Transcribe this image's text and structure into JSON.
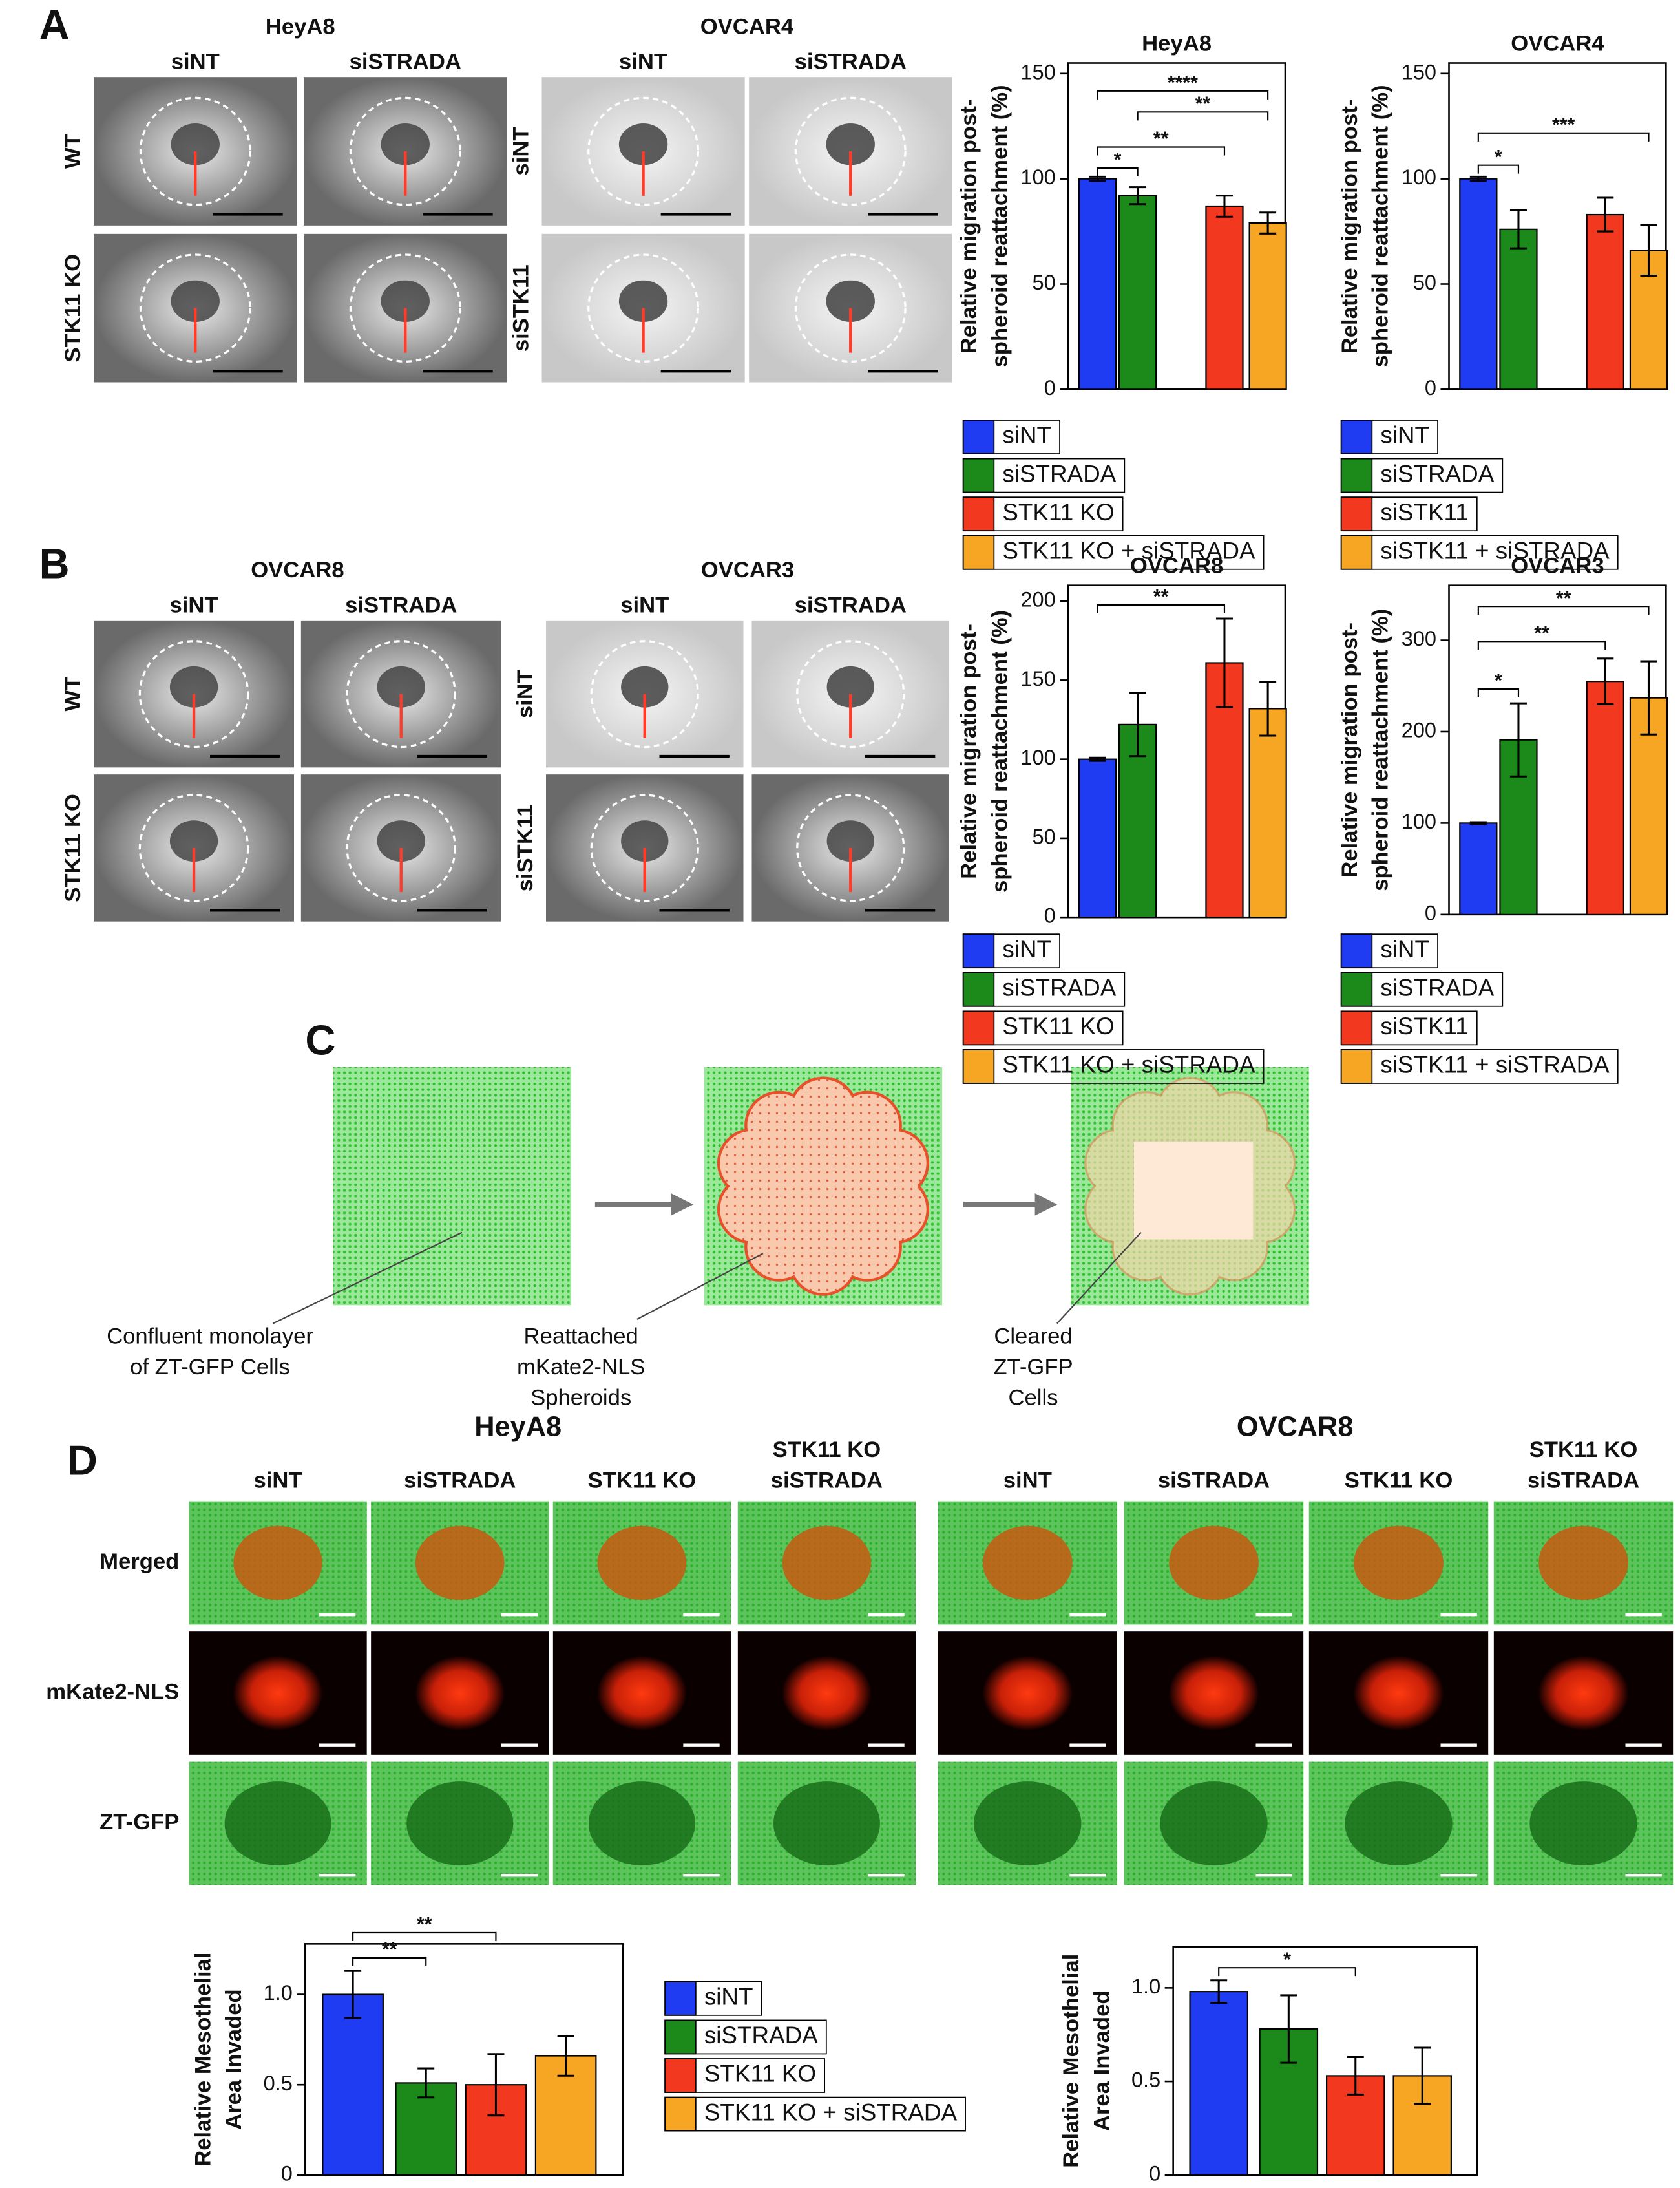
{
  "panel_a": {
    "label": "A",
    "groups": [
      {
        "title": "HeyA8",
        "cols": [
          "siNT",
          "siSTRADA"
        ],
        "rows": [
          "WT",
          "STK11 KO"
        ]
      },
      {
        "title": "OVCAR4",
        "cols": [
          "siNT",
          "siSTRADA"
        ],
        "rows": [
          "siNT",
          "siSTK11"
        ]
      }
    ]
  },
  "panel_b": {
    "label": "B",
    "groups": [
      {
        "title": "OVCAR8",
        "cols": [
          "siNT",
          "siSTRADA"
        ],
        "rows": [
          "WT",
          "STK11 KO"
        ]
      },
      {
        "title": "OVCAR3",
        "cols": [
          "siNT",
          "siSTRADA"
        ],
        "rows": [
          "siNT",
          "siSTK11"
        ]
      }
    ]
  },
  "panel_c": {
    "label": "C",
    "captions": [
      [
        "Confluent monolayer",
        "of ZT-GFP Cells"
      ],
      [
        "Reattached",
        "mKate2-NLS",
        "Spheroids"
      ],
      [
        "Cleared",
        "ZT-GFP",
        "Cells"
      ]
    ]
  },
  "panel_d": {
    "label": "D",
    "rows": [
      "Merged",
      "mKate2-NLS",
      "ZT-GFP"
    ],
    "groups": [
      {
        "title": "HeyA8",
        "cols": [
          [
            "siNT"
          ],
          [
            "siSTRADA"
          ],
          [
            "STK11 KO"
          ],
          [
            "STK11 KO",
            "siSTRADA"
          ]
        ]
      },
      {
        "title": "OVCAR8",
        "cols": [
          [
            "siNT"
          ],
          [
            "siSTRADA"
          ],
          [
            "STK11 KO"
          ],
          [
            "STK11 KO",
            "siSTRADA"
          ]
        ]
      }
    ]
  },
  "chart_data": [
    {
      "type": "bar",
      "title": "HeyA8",
      "ylabel": [
        "Relative migration post-",
        "spheroid reattachment (%)"
      ],
      "categories": [
        "siNT",
        "siSTRADA",
        "STK11 KO",
        "STK11 KO + siSTRADA"
      ],
      "colors": [
        "#1f3cf2",
        "#1b8a1b",
        "#f2381f",
        "#f7a623"
      ],
      "values": [
        100,
        92,
        87,
        79
      ],
      "errors": [
        1,
        4,
        5,
        5
      ],
      "ylim": [
        0,
        155
      ],
      "yticks": [
        0,
        50,
        100,
        150
      ],
      "annotations": [
        "****",
        "**",
        "**",
        "*"
      ],
      "legend": "below"
    },
    {
      "type": "bar",
      "title": "OVCAR4",
      "ylabel": [
        "Relative migration post-",
        "spheroid reattachment (%)"
      ],
      "categories": [
        "siNT",
        "siSTRADA",
        "siSTK11",
        "siSTK11 + siSTRADA"
      ],
      "colors": [
        "#1f3cf2",
        "#1b8a1b",
        "#f2381f",
        "#f7a623"
      ],
      "values": [
        100,
        76,
        83,
        66
      ],
      "errors": [
        1,
        9,
        8,
        12
      ],
      "ylim": [
        0,
        155
      ],
      "yticks": [
        0,
        50,
        100,
        150
      ],
      "annotations": [
        "***",
        "*"
      ],
      "legend": "below"
    },
    {
      "type": "bar",
      "title": "OVCAR8",
      "ylabel": [
        "Relative migration post-",
        "spheroid reattachment (%)"
      ],
      "categories": [
        "siNT",
        "siSTRADA",
        "STK11 KO",
        "STK11 KO + siSTRADA"
      ],
      "colors": [
        "#1f3cf2",
        "#1b8a1b",
        "#f2381f",
        "#f7a623"
      ],
      "values": [
        100,
        122,
        161,
        132
      ],
      "errors": [
        1,
        20,
        28,
        17
      ],
      "ylim": [
        0,
        210
      ],
      "yticks": [
        0,
        50,
        100,
        150,
        200
      ],
      "annotations": [
        "**"
      ],
      "legend": "below"
    },
    {
      "type": "bar",
      "title": "OVCAR3",
      "ylabel": [
        "Relative migration post-",
        "spheroid reattachment (%)"
      ],
      "categories": [
        "siNT",
        "siSTRADA",
        "siSTK11",
        "siSTK11 + siSTRADA"
      ],
      "colors": [
        "#1f3cf2",
        "#1b8a1b",
        "#f2381f",
        "#f7a623"
      ],
      "values": [
        100,
        191,
        255,
        237
      ],
      "errors": [
        1,
        40,
        25,
        40
      ],
      "ylim": [
        0,
        360
      ],
      "yticks": [
        0,
        100,
        200,
        300
      ],
      "annotations": [
        "**",
        "**",
        "*"
      ],
      "legend": "below"
    },
    {
      "type": "bar",
      "ylabel": [
        "Relative Mesothelial",
        "Area Invaded"
      ],
      "categories": [
        "siNT",
        "siSTRADA",
        "STK11 KO",
        "STK11 KO + siSTRADA"
      ],
      "colors": [
        "#1f3cf2",
        "#1b8a1b",
        "#f2381f",
        "#f7a623"
      ],
      "values": [
        1.0,
        0.51,
        0.5,
        0.66
      ],
      "errors": [
        0.13,
        0.08,
        0.17,
        0.11
      ],
      "ylim": [
        0,
        1.28
      ],
      "yticks": [
        0,
        0.5,
        {
          "value": 1,
          "label": "1.0"
        }
      ],
      "annotations": [
        "**",
        "**"
      ],
      "legend": "right"
    },
    {
      "type": "bar",
      "ylabel": [
        "Relative Mesothelial",
        "Area Invaded"
      ],
      "categories": [
        "siNT",
        "siSTRADA",
        "STK11 KO",
        "STK11 KO + siSTRADA"
      ],
      "colors": [
        "#1f3cf2",
        "#1b8a1b",
        "#f2381f",
        "#f7a623"
      ],
      "values": [
        0.98,
        0.78,
        0.53,
        0.53
      ],
      "errors": [
        0.06,
        0.18,
        0.1,
        0.15
      ],
      "ylim": [
        0,
        1.22
      ],
      "yticks": [
        0,
        0.5,
        {
          "value": 1,
          "label": "1.0"
        }
      ],
      "annotations": [
        "*"
      ],
      "legend": "none"
    }
  ]
}
